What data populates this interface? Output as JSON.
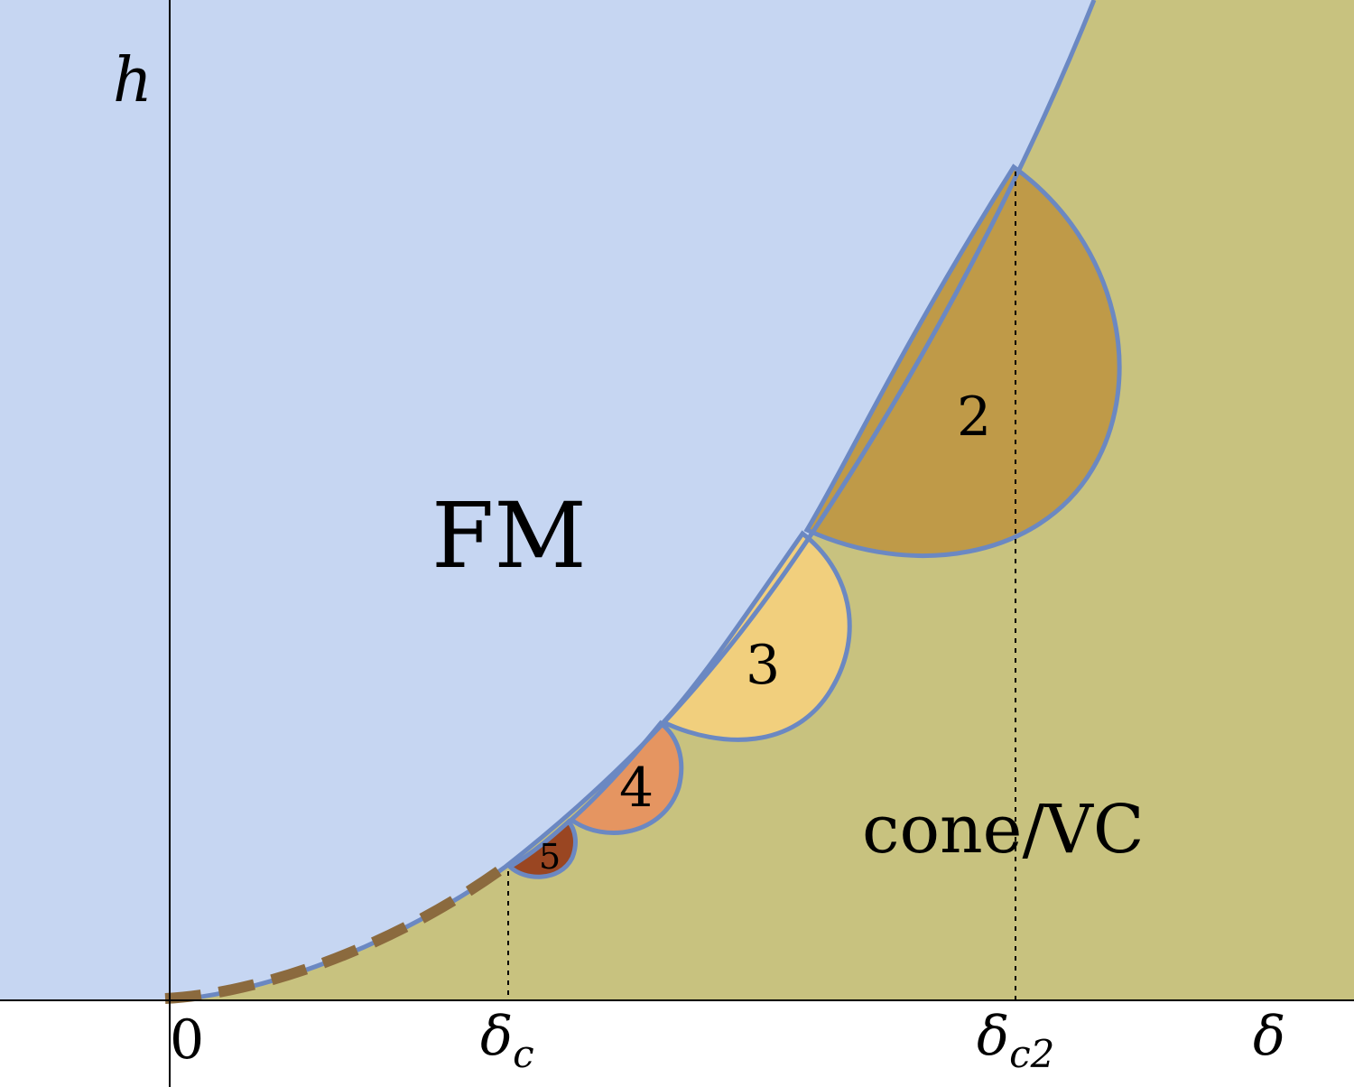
{
  "axes": {
    "y_label": "h",
    "x_label": "δ",
    "origin_label": "0",
    "tick_delta_c_main": "δ",
    "tick_delta_c_sub": "c",
    "tick_delta_c2_main": "δ",
    "tick_delta_c2_sub": "c2"
  },
  "regions": {
    "fm_label": "FM",
    "cone_label": "cone/VC",
    "lobes": [
      {
        "label": "2",
        "color": "#bf9a48"
      },
      {
        "label": "3",
        "color": "#f1cf7d"
      },
      {
        "label": "4",
        "color": "#e59561"
      },
      {
        "label": "5",
        "color": "#9a4622"
      }
    ]
  },
  "colors": {
    "fm_region": "#c6d6f2",
    "cone_region": "#c8c27f",
    "boundary": "#6b88c2",
    "dashed_boundary": "#8b6a3e"
  }
}
